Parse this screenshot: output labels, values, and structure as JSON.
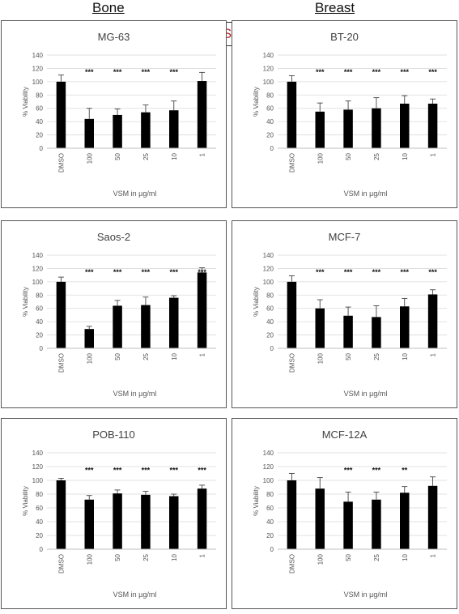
{
  "headers": {
    "left": "Bone",
    "right": "Breast",
    "center": "VSM"
  },
  "chart_data": [
    {
      "type": "bar",
      "title": "MG-63",
      "categories": [
        "DMSO",
        "100",
        "50",
        "25",
        "10",
        "1"
      ],
      "values": [
        100,
        44,
        50,
        54,
        57,
        101
      ],
      "errors": [
        10,
        16,
        9,
        11,
        14,
        13
      ],
      "significance": [
        "",
        "***",
        "***",
        "***",
        "***",
        ""
      ],
      "xlabel": "VSM in µg/ml",
      "ylabel": "% Viability",
      "ylim": [
        0,
        140
      ],
      "yticks": [
        0,
        20,
        40,
        60,
        80,
        100,
        120,
        140
      ],
      "grid": true
    },
    {
      "type": "bar",
      "title": "BT-20",
      "categories": [
        "DMSO",
        "100",
        "50",
        "25",
        "10",
        "1"
      ],
      "values": [
        100,
        55,
        58,
        60,
        67,
        67
      ],
      "errors": [
        9,
        13,
        13,
        16,
        12,
        7
      ],
      "significance": [
        "",
        "***",
        "***",
        "***",
        "***",
        "***"
      ],
      "xlabel": "VSM in µg/ml",
      "ylabel": "% Viability",
      "ylim": [
        0,
        140
      ],
      "yticks": [
        0,
        20,
        40,
        60,
        80,
        100,
        120,
        140
      ],
      "grid": true
    },
    {
      "type": "bar",
      "title": "Saos-2",
      "categories": [
        "DMSO",
        "100",
        "50",
        "25",
        "10",
        "1"
      ],
      "values": [
        100,
        29,
        64,
        65,
        76,
        114
      ],
      "errors": [
        7,
        4,
        8,
        12,
        3,
        7
      ],
      "significance": [
        "",
        "***",
        "***",
        "***",
        "***",
        "***"
      ],
      "xlabel": "VSM in µg/ml",
      "ylabel": "% Viability",
      "ylim": [
        0,
        140
      ],
      "yticks": [
        0,
        20,
        40,
        60,
        80,
        100,
        120,
        140
      ],
      "grid": true
    },
    {
      "type": "bar",
      "title": "MCF-7",
      "categories": [
        "DMSO",
        "100",
        "50",
        "25",
        "10",
        "1"
      ],
      "values": [
        100,
        60,
        49,
        47,
        63,
        81
      ],
      "errors": [
        9,
        13,
        13,
        17,
        12,
        7
      ],
      "significance": [
        "",
        "***",
        "***",
        "***",
        "***",
        "***"
      ],
      "xlabel": "VSM in µg/ml",
      "ylabel": "% Viability",
      "ylim": [
        0,
        140
      ],
      "yticks": [
        0,
        20,
        40,
        60,
        80,
        100,
        120,
        140
      ],
      "grid": true
    },
    {
      "type": "bar",
      "title": "POB-110",
      "categories": [
        "DMSO",
        "100",
        "50",
        "25",
        "10",
        "1"
      ],
      "values": [
        100,
        72,
        81,
        79,
        77,
        88
      ],
      "errors": [
        3,
        6,
        5,
        5,
        3,
        5
      ],
      "significance": [
        "",
        "***",
        "***",
        "***",
        "***",
        "***"
      ],
      "xlabel": "VSM in µg/ml",
      "ylabel": "% Viability",
      "ylim": [
        0,
        140
      ],
      "yticks": [
        0,
        20,
        40,
        60,
        80,
        100,
        120,
        140
      ],
      "grid": true
    },
    {
      "type": "bar",
      "title": "MCF-12A",
      "categories": [
        "DMSO",
        "100",
        "50",
        "25",
        "10",
        "1"
      ],
      "values": [
        100,
        88,
        69,
        72,
        82,
        92
      ],
      "errors": [
        10,
        16,
        14,
        11,
        9,
        13
      ],
      "significance": [
        "",
        "",
        "***",
        "***",
        "**",
        ""
      ],
      "xlabel": "VSM in µg/ml",
      "ylabel": "% Viability",
      "ylim": [
        0,
        140
      ],
      "yticks": [
        0,
        20,
        40,
        60,
        80,
        100,
        120,
        140
      ],
      "grid": true
    }
  ]
}
